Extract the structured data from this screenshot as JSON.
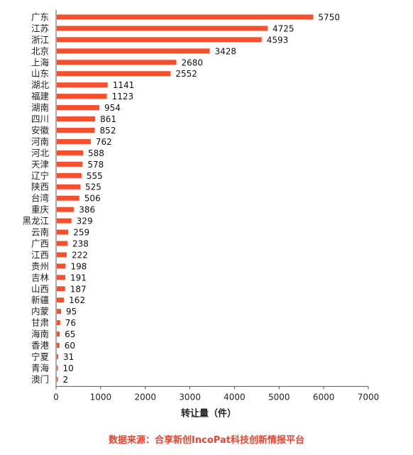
{
  "colors": {
    "bar": "#f4502d",
    "axis": "#555555",
    "source_text": "#e8442e"
  },
  "chart_data": {
    "type": "bar",
    "orientation": "horizontal",
    "categories": [
      "广东",
      "江苏",
      "浙江",
      "北京",
      "上海",
      "山东",
      "湖北",
      "福建",
      "湖南",
      "四川",
      "安徽",
      "河南",
      "河北",
      "天津",
      "辽宁",
      "陕西",
      "台湾",
      "重庆",
      "黑龙江",
      "云南",
      "广西",
      "江西",
      "贵州",
      "吉林",
      "山西",
      "新疆",
      "内蒙",
      "甘肃",
      "海南",
      "香港",
      "宁夏",
      "青海",
      "澳门"
    ],
    "values": [
      5750,
      4725,
      4593,
      3428,
      2680,
      2552,
      1141,
      1123,
      954,
      861,
      852,
      762,
      588,
      578,
      555,
      525,
      506,
      386,
      329,
      259,
      238,
      222,
      198,
      191,
      187,
      162,
      95,
      76,
      65,
      60,
      31,
      10,
      2
    ],
    "xlim": [
      0,
      7000
    ],
    "xticks": [
      0,
      1000,
      2000,
      3000,
      4000,
      5000,
      6000,
      7000
    ],
    "xlabel": "转让量（件）",
    "grid": false,
    "legend": "none"
  },
  "source": "数据来源：合享新创IncoPat科技创新情报平台"
}
